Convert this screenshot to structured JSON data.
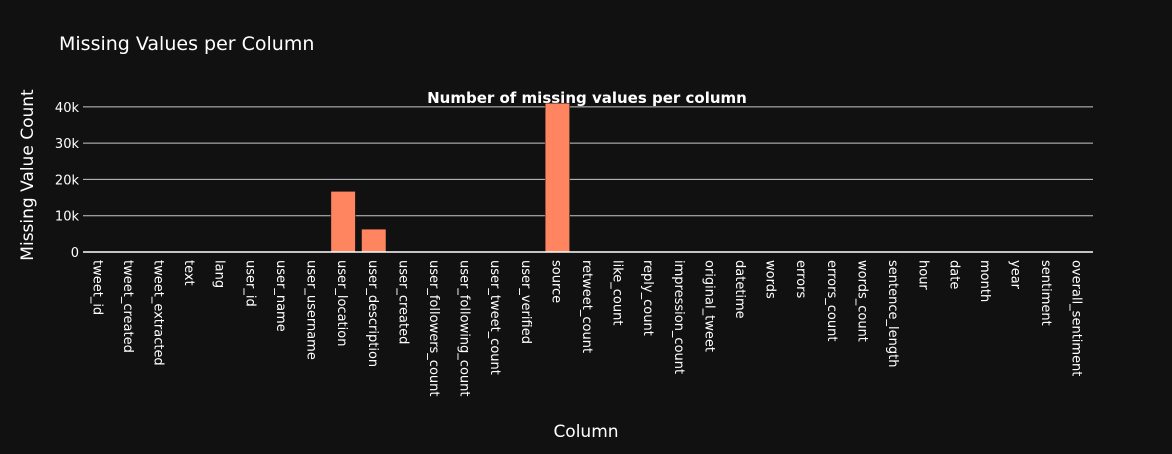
{
  "title": "Missing Values per Column",
  "colors": {
    "background": "#111111",
    "bar": "#ff8560",
    "bar_border": "#111111",
    "grid": "#c8c8c8",
    "axis_line": "#ffffff",
    "text": "#ffffff"
  },
  "chart_data": {
    "type": "bar",
    "title": "Missing Values per Column",
    "annotation": "Number of missing values per column",
    "xlabel": "Column",
    "ylabel": "Missing Value Count",
    "ylim": [
      0,
      40500
    ],
    "yticks": [
      0,
      10000,
      20000,
      30000,
      40000
    ],
    "ytick_labels": [
      "0",
      "10k",
      "20k",
      "30k",
      "40k"
    ],
    "grid": true,
    "categories": [
      "tweet_id",
      "tweet_created",
      "tweet_extracted",
      "text",
      "lang",
      "user_id",
      "user_name",
      "user_username",
      "user_location",
      "user_description",
      "user_created",
      "user_followers_count",
      "user_following_count",
      "user_tweet_count",
      "user_verified",
      "source",
      "retweet_count",
      "like_count",
      "reply_count",
      "impression_count",
      "original_tweet",
      "datetime",
      "words",
      "errors",
      "errors_count",
      "words_count",
      "sentence_length",
      "hour",
      "date",
      "month",
      "year",
      "sentiment",
      "overall_sentiment"
    ],
    "values": [
      0,
      0,
      0,
      0,
      0,
      0,
      0,
      0,
      16700,
      6300,
      0,
      0,
      0,
      0,
      0,
      41000,
      0,
      0,
      0,
      0,
      0,
      0,
      0,
      0,
      0,
      0,
      0,
      0,
      0,
      0,
      0,
      0,
      0
    ]
  }
}
